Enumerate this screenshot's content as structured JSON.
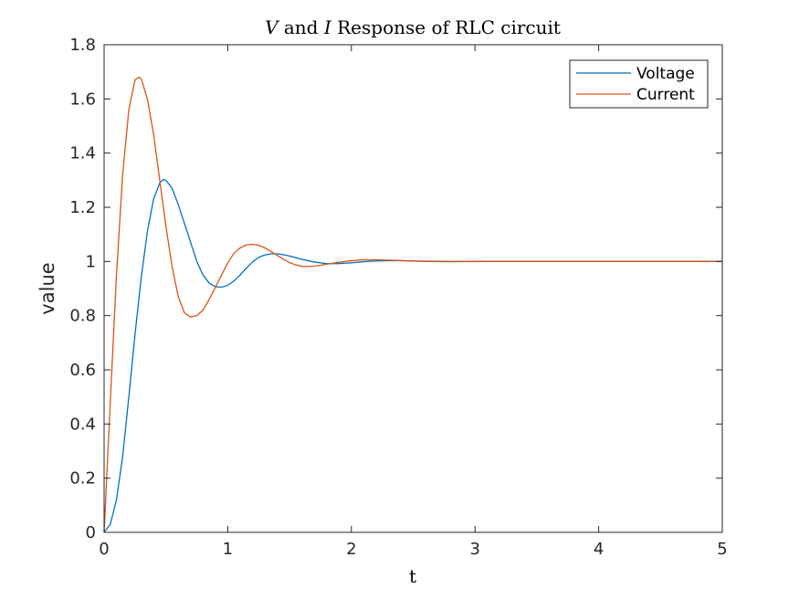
{
  "chart_data": {
    "type": "line",
    "title": {
      "v": "V",
      "and": "and",
      "i": "I",
      "rest": "Response of RLC circuit"
    },
    "xlabel": "t",
    "ylabel": "value",
    "xlim": [
      0,
      5
    ],
    "ylim": [
      0,
      1.8
    ],
    "xticks": [
      0,
      1,
      2,
      3,
      4,
      5
    ],
    "yticks": [
      0,
      0.2,
      0.4,
      0.6,
      0.8,
      1,
      1.2,
      1.4,
      1.6,
      1.8
    ],
    "xtick_labels": [
      "0",
      "1",
      "2",
      "3",
      "4",
      "5"
    ],
    "ytick_labels": [
      "0",
      "0.2",
      "0.4",
      "0.6",
      "0.8",
      "1",
      "1.2",
      "1.4",
      "1.6",
      "1.8"
    ],
    "grid": false,
    "legend_position": "top-right",
    "series": [
      {
        "name": "Voltage",
        "color": "#0072BD",
        "x": [
          0,
          0.05,
          0.1,
          0.15,
          0.2,
          0.25,
          0.3,
          0.35,
          0.4,
          0.45,
          0.48,
          0.5,
          0.55,
          0.6,
          0.65,
          0.7,
          0.75,
          0.8,
          0.85,
          0.9,
          0.95,
          1.0,
          1.05,
          1.1,
          1.15,
          1.2,
          1.25,
          1.3,
          1.35,
          1.4,
          1.45,
          1.5,
          1.6,
          1.7,
          1.8,
          1.9,
          2.0,
          2.1,
          2.2,
          2.3,
          2.4,
          2.5,
          2.6,
          2.8,
          3.0,
          3.5,
          4.0,
          4.5,
          5.0
        ],
        "y": [
          0,
          0.03,
          0.12,
          0.28,
          0.5,
          0.73,
          0.94,
          1.11,
          1.23,
          1.29,
          1.303,
          1.3,
          1.27,
          1.21,
          1.14,
          1.07,
          1.0,
          0.95,
          0.92,
          0.907,
          0.905,
          0.912,
          0.928,
          0.95,
          0.975,
          0.998,
          1.015,
          1.024,
          1.028,
          1.028,
          1.025,
          1.02,
          1.008,
          0.998,
          0.992,
          0.992,
          0.995,
          0.999,
          1.002,
          1.003,
          1.003,
          1.002,
          1.001,
          1.0,
          1.0,
          1.0,
          1.0,
          1.0,
          1.0
        ]
      },
      {
        "name": "Current",
        "color": "#D95319",
        "x": [
          0,
          0.05,
          0.1,
          0.15,
          0.2,
          0.25,
          0.28,
          0.3,
          0.35,
          0.4,
          0.45,
          0.5,
          0.55,
          0.6,
          0.65,
          0.7,
          0.75,
          0.8,
          0.85,
          0.9,
          0.95,
          1.0,
          1.05,
          1.1,
          1.15,
          1.2,
          1.25,
          1.3,
          1.35,
          1.4,
          1.45,
          1.5,
          1.55,
          1.6,
          1.65,
          1.7,
          1.75,
          1.8,
          1.9,
          2.0,
          2.1,
          2.2,
          2.3,
          2.4,
          2.6,
          2.8,
          3.0,
          3.5,
          4.0,
          4.5,
          5.0
        ],
        "y": [
          0,
          0.48,
          0.95,
          1.32,
          1.56,
          1.67,
          1.68,
          1.675,
          1.6,
          1.47,
          1.3,
          1.13,
          0.98,
          0.87,
          0.81,
          0.795,
          0.8,
          0.82,
          0.86,
          0.905,
          0.95,
          0.995,
          1.03,
          1.05,
          1.061,
          1.063,
          1.06,
          1.05,
          1.037,
          1.022,
          1.008,
          0.996,
          0.987,
          0.982,
          0.981,
          0.983,
          0.986,
          0.99,
          0.997,
          1.003,
          1.006,
          1.006,
          1.005,
          1.003,
          1.0,
          0.999,
          1.0,
          1.0,
          1.0,
          1.0,
          1.0
        ]
      }
    ]
  }
}
